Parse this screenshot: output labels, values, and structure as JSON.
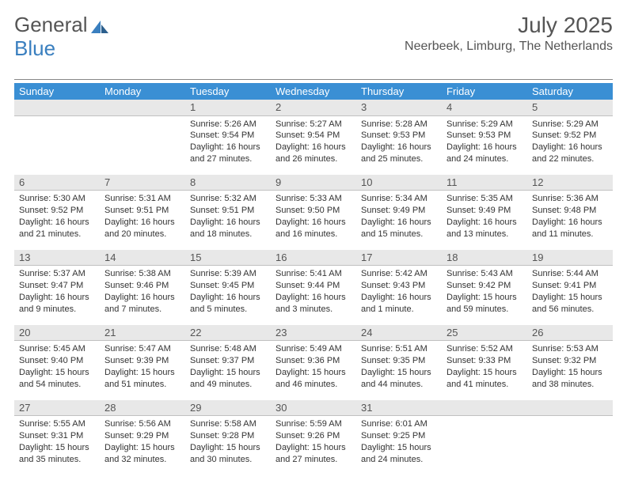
{
  "logo": {
    "word1": "General",
    "word2": "Blue"
  },
  "title": "July 2025",
  "subtitle": "Neerbeek, Limburg, The Netherlands",
  "colors": {
    "header_bg": "#3a8fd4",
    "header_fg": "#ffffff",
    "datebar_bg": "#e8e8e8",
    "text": "#333333",
    "rule": "#888888",
    "logo_gray": "#555555",
    "logo_blue": "#3a7fbf"
  },
  "day_names": [
    "Sunday",
    "Monday",
    "Tuesday",
    "Wednesday",
    "Thursday",
    "Friday",
    "Saturday"
  ],
  "weeks": [
    {
      "dates": [
        "",
        "",
        "1",
        "2",
        "3",
        "4",
        "5"
      ],
      "info": [
        "",
        "",
        "Sunrise: 5:26 AM\nSunset: 9:54 PM\nDaylight: 16 hours and 27 minutes.",
        "Sunrise: 5:27 AM\nSunset: 9:54 PM\nDaylight: 16 hours and 26 minutes.",
        "Sunrise: 5:28 AM\nSunset: 9:53 PM\nDaylight: 16 hours and 25 minutes.",
        "Sunrise: 5:29 AM\nSunset: 9:53 PM\nDaylight: 16 hours and 24 minutes.",
        "Sunrise: 5:29 AM\nSunset: 9:52 PM\nDaylight: 16 hours and 22 minutes."
      ]
    },
    {
      "dates": [
        "6",
        "7",
        "8",
        "9",
        "10",
        "11",
        "12"
      ],
      "info": [
        "Sunrise: 5:30 AM\nSunset: 9:52 PM\nDaylight: 16 hours and 21 minutes.",
        "Sunrise: 5:31 AM\nSunset: 9:51 PM\nDaylight: 16 hours and 20 minutes.",
        "Sunrise: 5:32 AM\nSunset: 9:51 PM\nDaylight: 16 hours and 18 minutes.",
        "Sunrise: 5:33 AM\nSunset: 9:50 PM\nDaylight: 16 hours and 16 minutes.",
        "Sunrise: 5:34 AM\nSunset: 9:49 PM\nDaylight: 16 hours and 15 minutes.",
        "Sunrise: 5:35 AM\nSunset: 9:49 PM\nDaylight: 16 hours and 13 minutes.",
        "Sunrise: 5:36 AM\nSunset: 9:48 PM\nDaylight: 16 hours and 11 minutes."
      ]
    },
    {
      "dates": [
        "13",
        "14",
        "15",
        "16",
        "17",
        "18",
        "19"
      ],
      "info": [
        "Sunrise: 5:37 AM\nSunset: 9:47 PM\nDaylight: 16 hours and 9 minutes.",
        "Sunrise: 5:38 AM\nSunset: 9:46 PM\nDaylight: 16 hours and 7 minutes.",
        "Sunrise: 5:39 AM\nSunset: 9:45 PM\nDaylight: 16 hours and 5 minutes.",
        "Sunrise: 5:41 AM\nSunset: 9:44 PM\nDaylight: 16 hours and 3 minutes.",
        "Sunrise: 5:42 AM\nSunset: 9:43 PM\nDaylight: 16 hours and 1 minute.",
        "Sunrise: 5:43 AM\nSunset: 9:42 PM\nDaylight: 15 hours and 59 minutes.",
        "Sunrise: 5:44 AM\nSunset: 9:41 PM\nDaylight: 15 hours and 56 minutes."
      ]
    },
    {
      "dates": [
        "20",
        "21",
        "22",
        "23",
        "24",
        "25",
        "26"
      ],
      "info": [
        "Sunrise: 5:45 AM\nSunset: 9:40 PM\nDaylight: 15 hours and 54 minutes.",
        "Sunrise: 5:47 AM\nSunset: 9:39 PM\nDaylight: 15 hours and 51 minutes.",
        "Sunrise: 5:48 AM\nSunset: 9:37 PM\nDaylight: 15 hours and 49 minutes.",
        "Sunrise: 5:49 AM\nSunset: 9:36 PM\nDaylight: 15 hours and 46 minutes.",
        "Sunrise: 5:51 AM\nSunset: 9:35 PM\nDaylight: 15 hours and 44 minutes.",
        "Sunrise: 5:52 AM\nSunset: 9:33 PM\nDaylight: 15 hours and 41 minutes.",
        "Sunrise: 5:53 AM\nSunset: 9:32 PM\nDaylight: 15 hours and 38 minutes."
      ]
    },
    {
      "dates": [
        "27",
        "28",
        "29",
        "30",
        "31",
        "",
        ""
      ],
      "info": [
        "Sunrise: 5:55 AM\nSunset: 9:31 PM\nDaylight: 15 hours and 35 minutes.",
        "Sunrise: 5:56 AM\nSunset: 9:29 PM\nDaylight: 15 hours and 32 minutes.",
        "Sunrise: 5:58 AM\nSunset: 9:28 PM\nDaylight: 15 hours and 30 minutes.",
        "Sunrise: 5:59 AM\nSunset: 9:26 PM\nDaylight: 15 hours and 27 minutes.",
        "Sunrise: 6:01 AM\nSunset: 9:25 PM\nDaylight: 15 hours and 24 minutes.",
        "",
        ""
      ]
    }
  ]
}
